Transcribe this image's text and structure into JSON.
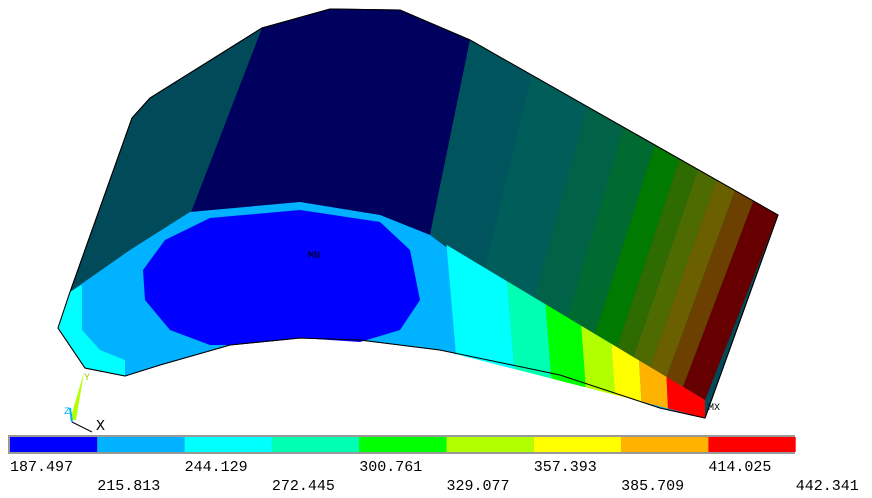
{
  "legend": {
    "labels": [
      "187.497",
      "215.813",
      "244.129",
      "272.445",
      "300.761",
      "329.077",
      "357.393",
      "385.709",
      "414.025",
      "442.341"
    ],
    "colors": [
      "#0000ff",
      "#00b2ff",
      "#00ffff",
      "#00ffb2",
      "#00ff00",
      "#b2ff00",
      "#ffff00",
      "#ffb200",
      "#ff0000"
    ]
  },
  "markers": {
    "min": "MN",
    "max": "MX"
  },
  "triad": {
    "y": "Y",
    "z": "Z",
    "x": "X"
  }
}
